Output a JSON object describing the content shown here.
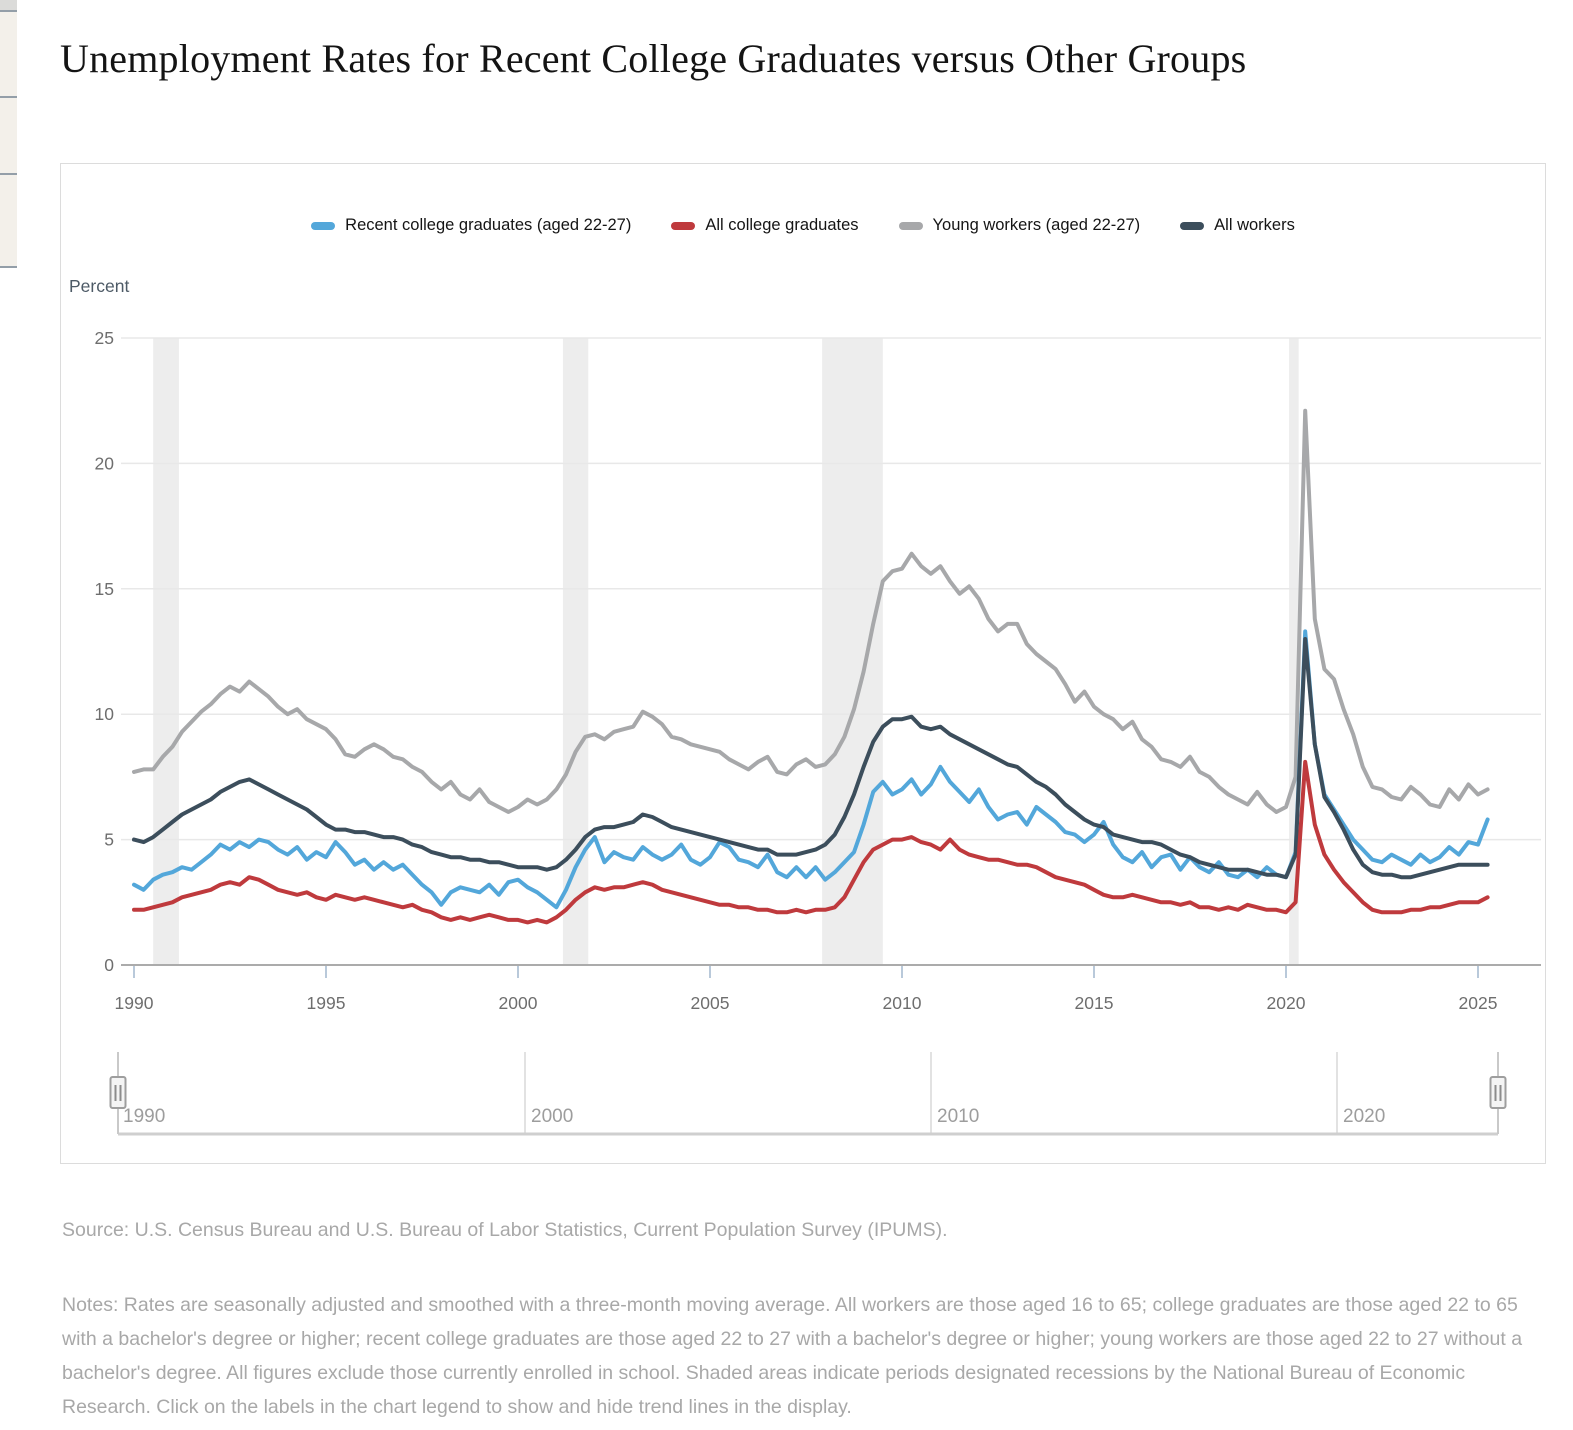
{
  "page": {
    "title": "Unemployment Rates for Recent College Graduates versus Other Groups"
  },
  "chart": {
    "y_axis_title": "Percent",
    "navigator": {
      "labels": [
        "1990",
        "2000",
        "2010",
        "2020"
      ],
      "left_handle": "range-start",
      "right_handle": "range-end"
    }
  },
  "chart_data": {
    "type": "line",
    "title": "Unemployment Rates for Recent College Graduates versus Other Groups",
    "ylabel": "Percent",
    "ylim": [
      0,
      25
    ],
    "yticks": [
      0,
      5,
      10,
      15,
      20,
      25
    ],
    "xticks": [
      1990,
      1995,
      2000,
      2005,
      2010,
      2015,
      2020,
      2025
    ],
    "xlim": [
      1990,
      2025.25
    ],
    "x_start": 1990,
    "x_step": 0.25,
    "grid": true,
    "legend_position": "top-center",
    "recession_bands": [
      [
        1990.5,
        1991.17
      ],
      [
        2001.17,
        2001.83
      ],
      [
        2007.92,
        2009.5
      ],
      [
        2020.08,
        2020.33
      ]
    ],
    "series": [
      {
        "name": "Young workers (aged 22-27)",
        "color": "#a7a8aa",
        "values": [
          7.7,
          7.8,
          7.8,
          8.3,
          8.7,
          9.3,
          9.7,
          10.1,
          10.4,
          10.8,
          11.1,
          10.9,
          11.3,
          11.0,
          10.7,
          10.3,
          10.0,
          10.2,
          9.8,
          9.6,
          9.4,
          9.0,
          8.4,
          8.3,
          8.6,
          8.8,
          8.6,
          8.3,
          8.2,
          7.9,
          7.7,
          7.3,
          7.0,
          7.3,
          6.8,
          6.6,
          7.0,
          6.5,
          6.3,
          6.1,
          6.3,
          6.6,
          6.4,
          6.6,
          7.0,
          7.6,
          8.5,
          9.1,
          9.2,
          9.0,
          9.3,
          9.4,
          9.5,
          10.1,
          9.9,
          9.6,
          9.1,
          9.0,
          8.8,
          8.7,
          8.6,
          8.5,
          8.2,
          8.0,
          7.8,
          8.1,
          8.3,
          7.7,
          7.6,
          8.0,
          8.2,
          7.9,
          8.0,
          8.4,
          9.1,
          10.2,
          11.7,
          13.6,
          15.3,
          15.7,
          15.8,
          16.4,
          15.9,
          15.6,
          15.9,
          15.3,
          14.8,
          15.1,
          14.6,
          13.8,
          13.3,
          13.6,
          13.6,
          12.8,
          12.4,
          12.1,
          11.8,
          11.2,
          10.5,
          10.9,
          10.3,
          10.0,
          9.8,
          9.4,
          9.7,
          9.0,
          8.7,
          8.2,
          8.1,
          7.9,
          8.3,
          7.7,
          7.5,
          7.1,
          6.8,
          6.6,
          6.4,
          6.9,
          6.4,
          6.1,
          6.3,
          7.5,
          22.1,
          13.8,
          11.8,
          11.4,
          10.2,
          9.2,
          7.9,
          7.1,
          7.0,
          6.7,
          6.6,
          7.1,
          6.8,
          6.4,
          6.3,
          7.0,
          6.6,
          7.2,
          6.8,
          7.0
        ]
      },
      {
        "name": "Recent college graduates (aged 22-27)",
        "color": "#53a7da",
        "values": [
          3.2,
          3.0,
          3.4,
          3.6,
          3.7,
          3.9,
          3.8,
          4.1,
          4.4,
          4.8,
          4.6,
          4.9,
          4.7,
          5.0,
          4.9,
          4.6,
          4.4,
          4.7,
          4.2,
          4.5,
          4.3,
          4.9,
          4.5,
          4.0,
          4.2,
          3.8,
          4.1,
          3.8,
          4.0,
          3.6,
          3.2,
          2.9,
          2.4,
          2.9,
          3.1,
          3.0,
          2.9,
          3.2,
          2.8,
          3.3,
          3.4,
          3.1,
          2.9,
          2.6,
          2.3,
          3.0,
          3.9,
          4.6,
          5.1,
          4.1,
          4.5,
          4.3,
          4.2,
          4.7,
          4.4,
          4.2,
          4.4,
          4.8,
          4.2,
          4.0,
          4.3,
          4.9,
          4.7,
          4.2,
          4.1,
          3.9,
          4.4,
          3.7,
          3.5,
          3.9,
          3.5,
          3.9,
          3.4,
          3.7,
          4.1,
          4.5,
          5.6,
          6.9,
          7.3,
          6.8,
          7.0,
          7.4,
          6.8,
          7.2,
          7.9,
          7.3,
          6.9,
          6.5,
          7.0,
          6.3,
          5.8,
          6.0,
          6.1,
          5.6,
          6.3,
          6.0,
          5.7,
          5.3,
          5.2,
          4.9,
          5.2,
          5.7,
          4.8,
          4.3,
          4.1,
          4.5,
          3.9,
          4.3,
          4.4,
          3.8,
          4.3,
          3.9,
          3.7,
          4.1,
          3.6,
          3.5,
          3.8,
          3.5,
          3.9,
          3.6,
          3.5,
          4.5,
          13.3,
          8.8,
          6.8,
          6.2,
          5.6,
          5.0,
          4.6,
          4.2,
          4.1,
          4.4,
          4.2,
          4.0,
          4.4,
          4.1,
          4.3,
          4.7,
          4.4,
          4.9,
          4.8,
          5.8
        ]
      },
      {
        "name": "All workers",
        "color": "#3c4e5c",
        "values": [
          5.0,
          4.9,
          5.1,
          5.4,
          5.7,
          6.0,
          6.2,
          6.4,
          6.6,
          6.9,
          7.1,
          7.3,
          7.4,
          7.2,
          7.0,
          6.8,
          6.6,
          6.4,
          6.2,
          5.9,
          5.6,
          5.4,
          5.4,
          5.3,
          5.3,
          5.2,
          5.1,
          5.1,
          5.0,
          4.8,
          4.7,
          4.5,
          4.4,
          4.3,
          4.3,
          4.2,
          4.2,
          4.1,
          4.1,
          4.0,
          3.9,
          3.9,
          3.9,
          3.8,
          3.9,
          4.2,
          4.6,
          5.1,
          5.4,
          5.5,
          5.5,
          5.6,
          5.7,
          6.0,
          5.9,
          5.7,
          5.5,
          5.4,
          5.3,
          5.2,
          5.1,
          5.0,
          4.9,
          4.8,
          4.7,
          4.6,
          4.6,
          4.4,
          4.4,
          4.4,
          4.5,
          4.6,
          4.8,
          5.2,
          5.9,
          6.8,
          7.9,
          8.9,
          9.5,
          9.8,
          9.8,
          9.9,
          9.5,
          9.4,
          9.5,
          9.2,
          9.0,
          8.8,
          8.6,
          8.4,
          8.2,
          8.0,
          7.9,
          7.6,
          7.3,
          7.1,
          6.8,
          6.4,
          6.1,
          5.8,
          5.6,
          5.5,
          5.2,
          5.1,
          5.0,
          4.9,
          4.9,
          4.8,
          4.6,
          4.4,
          4.3,
          4.1,
          4.0,
          3.9,
          3.8,
          3.8,
          3.8,
          3.7,
          3.6,
          3.6,
          3.5,
          4.4,
          13.0,
          8.8,
          6.7,
          6.1,
          5.4,
          4.6,
          4.0,
          3.7,
          3.6,
          3.6,
          3.5,
          3.5,
          3.6,
          3.7,
          3.8,
          3.9,
          4.0,
          4.0,
          4.0,
          4.0
        ]
      },
      {
        "name": "All college graduates",
        "color": "#bf3a3d",
        "values": [
          2.2,
          2.2,
          2.3,
          2.4,
          2.5,
          2.7,
          2.8,
          2.9,
          3.0,
          3.2,
          3.3,
          3.2,
          3.5,
          3.4,
          3.2,
          3.0,
          2.9,
          2.8,
          2.9,
          2.7,
          2.6,
          2.8,
          2.7,
          2.6,
          2.7,
          2.6,
          2.5,
          2.4,
          2.3,
          2.4,
          2.2,
          2.1,
          1.9,
          1.8,
          1.9,
          1.8,
          1.9,
          2.0,
          1.9,
          1.8,
          1.8,
          1.7,
          1.8,
          1.7,
          1.9,
          2.2,
          2.6,
          2.9,
          3.1,
          3.0,
          3.1,
          3.1,
          3.2,
          3.3,
          3.2,
          3.0,
          2.9,
          2.8,
          2.7,
          2.6,
          2.5,
          2.4,
          2.4,
          2.3,
          2.3,
          2.2,
          2.2,
          2.1,
          2.1,
          2.2,
          2.1,
          2.2,
          2.2,
          2.3,
          2.7,
          3.4,
          4.1,
          4.6,
          4.8,
          5.0,
          5.0,
          5.1,
          4.9,
          4.8,
          4.6,
          5.0,
          4.6,
          4.4,
          4.3,
          4.2,
          4.2,
          4.1,
          4.0,
          4.0,
          3.9,
          3.7,
          3.5,
          3.4,
          3.3,
          3.2,
          3.0,
          2.8,
          2.7,
          2.7,
          2.8,
          2.7,
          2.6,
          2.5,
          2.5,
          2.4,
          2.5,
          2.3,
          2.3,
          2.2,
          2.3,
          2.2,
          2.4,
          2.3,
          2.2,
          2.2,
          2.1,
          2.5,
          8.1,
          5.6,
          4.4,
          3.8,
          3.3,
          2.9,
          2.5,
          2.2,
          2.1,
          2.1,
          2.1,
          2.2,
          2.2,
          2.3,
          2.3,
          2.4,
          2.5,
          2.5,
          2.5,
          2.7
        ]
      }
    ],
    "legend_order": [
      "Recent college graduates (aged 22-27)",
      "All college graduates",
      "Young workers (aged 22-27)",
      "All workers"
    ],
    "notes_recessions": "Shaded areas indicate periods designated recessions by the National Bureau of Economic Research."
  },
  "source": "Source: U.S. Census Bureau and U.S. Bureau of Labor Statistics, Current Population Survey (IPUMS).",
  "notes": "Notes: Rates are seasonally adjusted and smoothed with a three-month moving average. All workers are those aged 16 to 65; college graduates are those aged 22 to 65 with a bachelor's degree or higher; recent college graduates are those aged 22 to 27 with a bachelor's degree or higher; young workers are those aged 22 to 27 without a bachelor's degree. All figures exclude those currently enrolled in school. Shaded areas indicate periods designated recessions by the National Bureau of Economic Research. Click on the labels in the chart legend to show and hide trend lines in the display."
}
